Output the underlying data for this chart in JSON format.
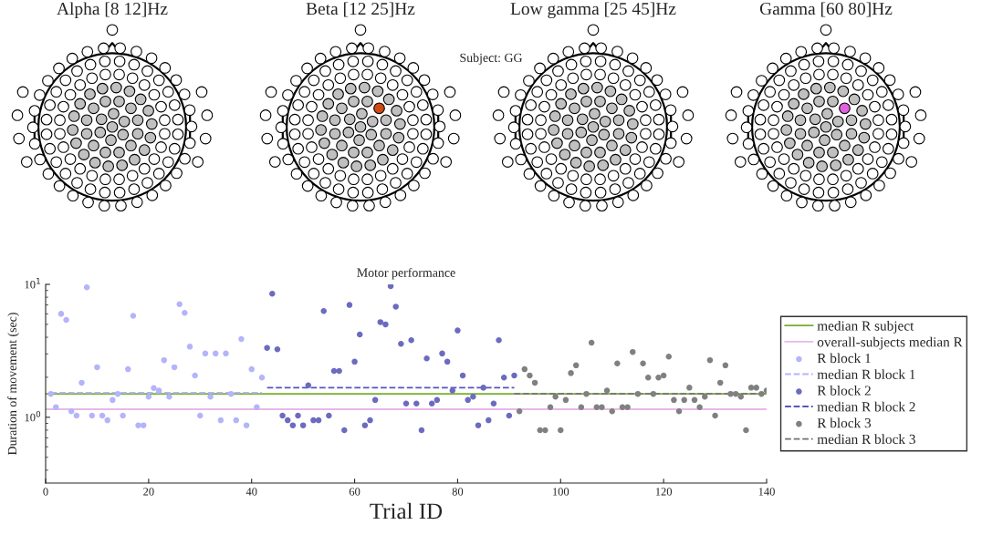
{
  "chart_data": [
    {
      "type": "other",
      "title": "Alpha [8 12]Hz"
    },
    {
      "type": "other",
      "title": "Beta [12 25]Hz",
      "annotations": [
        "Subject: GG"
      ]
    },
    {
      "type": "other",
      "title": "Low gamma [25 45]Hz"
    },
    {
      "type": "other",
      "title": "Gamma [60 80]Hz"
    },
    {
      "type": "scatter",
      "title": "Motor performance",
      "xlabel": "Trial ID",
      "ylabel": "Duration of movement (sec)",
      "log": "y",
      "xlim": [
        0,
        140
      ],
      "xticks": [
        0,
        20,
        40,
        60,
        80,
        100,
        120,
        140
      ],
      "ylim": [
        0.32,
        10
      ],
      "yticks": [
        {
          "value": 1,
          "label": "10$^{0}$"
        },
        {
          "value": 10,
          "label": "10$^{1}$"
        }
      ],
      "grid": false,
      "legend": "right",
      "series": [
        {
          "name": "median R subject",
          "type": "line",
          "line_style": "solid",
          "color": "#77ac30",
          "x": [
            0,
            140
          ],
          "values": [
            1.5,
            1.5
          ]
        },
        {
          "name": "overall-subjects median R",
          "type": "line",
          "line_style": "solid",
          "color": "#e8b8e8",
          "x": [
            0,
            140
          ],
          "values": [
            1.15,
            1.15
          ]
        },
        {
          "name": "R block 1",
          "type": "scatter",
          "marker": "circle",
          "color": "#b4b4fa",
          "x": [
            1,
            2,
            3,
            4,
            5,
            6,
            7,
            8,
            9,
            10,
            11,
            12,
            13,
            14,
            15,
            16,
            17,
            18,
            19,
            20,
            21,
            22,
            23,
            24,
            25,
            26,
            27,
            28,
            29,
            30,
            31,
            32,
            33,
            34,
            35,
            36,
            37,
            38,
            39,
            40,
            41,
            42
          ],
          "values": [
            1.5,
            1.19,
            6.0,
            5.4,
            1.11,
            1.03,
            1.82,
            9.5,
            1.03,
            2.38,
            1.03,
            0.95,
            1.35,
            1.5,
            1.03,
            2.3,
            5.8,
            0.87,
            0.87,
            1.43,
            1.66,
            1.59,
            2.69,
            1.43,
            2.38,
            7.1,
            6.1,
            3.4,
            2.06,
            1.03,
            3.02,
            1.43,
            3.02,
            0.95,
            3.02,
            1.5,
            0.95,
            3.88,
            0.87,
            2.3,
            1.19,
            1.99
          ]
        },
        {
          "name": "median R block 1",
          "type": "line",
          "line_style": "dashed",
          "color": "#b4b4fa",
          "x": [
            1,
            42
          ],
          "values": [
            1.53,
            1.53
          ]
        },
        {
          "name": "R block 2",
          "type": "scatter",
          "marker": "circle",
          "color": "#6b6bbf",
          "x": [
            43,
            44,
            45,
            46,
            47,
            48,
            49,
            50,
            51,
            52,
            53,
            54,
            55,
            56,
            57,
            58,
            59,
            60,
            61,
            62,
            63,
            64,
            65,
            66,
            67,
            68,
            69,
            70,
            71,
            72,
            73,
            74,
            75,
            76,
            77,
            78,
            79,
            80,
            81,
            82,
            83,
            84,
            85,
            86,
            87,
            88,
            89,
            90,
            91
          ],
          "values": [
            3.33,
            8.5,
            3.25,
            1.03,
            0.95,
            0.87,
            1.03,
            0.87,
            1.74,
            0.95,
            0.95,
            6.3,
            1.03,
            2.23,
            2.23,
            0.8,
            7.0,
            2.62,
            4.2,
            0.87,
            0.95,
            1.35,
            5.2,
            5.0,
            9.7,
            6.8,
            3.57,
            1.27,
            3.8,
            1.27,
            0.8,
            2.77,
            1.27,
            1.35,
            3.02,
            2.62,
            1.59,
            4.5,
            2.06,
            1.35,
            1.43,
            0.87,
            1.67,
            0.95,
            1.27,
            3.8,
            1.99,
            1.03,
            2.06
          ]
        },
        {
          "name": "median R block 2",
          "type": "line",
          "line_style": "dashed",
          "color": "#5555c0",
          "x": [
            43,
            91
          ],
          "values": [
            1.67,
            1.67
          ]
        },
        {
          "name": "R block 3",
          "type": "scatter",
          "marker": "circle",
          "color": "#808080",
          "x": [
            92,
            93,
            94,
            95,
            96,
            97,
            98,
            99,
            100,
            101,
            102,
            103,
            104,
            105,
            106,
            107,
            108,
            109,
            110,
            111,
            112,
            113,
            114,
            115,
            116,
            117,
            118,
            119,
            120,
            121,
            122,
            123,
            124,
            125,
            126,
            127,
            128,
            129,
            130,
            131,
            132,
            133,
            134,
            135,
            136,
            137,
            138,
            139,
            140
          ],
          "values": [
            1.11,
            2.3,
            2.06,
            1.82,
            0.8,
            0.8,
            1.19,
            1.43,
            0.8,
            1.35,
            2.15,
            2.46,
            1.19,
            1.5,
            3.64,
            1.19,
            1.19,
            1.59,
            1.11,
            2.54,
            1.19,
            1.19,
            3.1,
            1.5,
            2.54,
            1.99,
            1.5,
            1.99,
            2.06,
            2.86,
            1.35,
            1.11,
            1.35,
            1.67,
            1.35,
            1.19,
            1.43,
            2.69,
            1.03,
            1.82,
            2.46,
            1.5,
            1.5,
            1.43,
            0.8,
            1.67,
            1.67,
            1.5,
            1.59
          ]
        },
        {
          "name": "median R block 3",
          "type": "line",
          "line_style": "dashed",
          "color": "#707070",
          "x": [
            91,
            140
          ],
          "values": [
            1.5,
            1.5
          ]
        }
      ]
    }
  ]
}
